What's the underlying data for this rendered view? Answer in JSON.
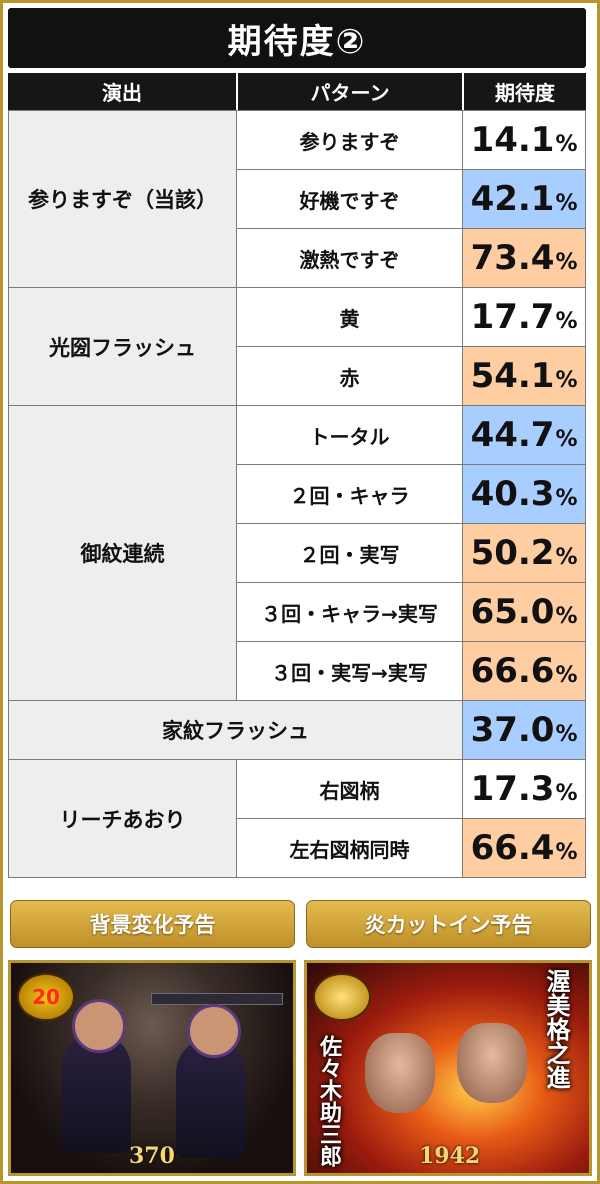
{
  "title": "期待度②",
  "headers": {
    "col1": "演出",
    "col2": "パターン",
    "col3": "期待度"
  },
  "pct_symbol": "%",
  "groups": [
    {
      "name": "参りますぞ（当該）",
      "rows": [
        {
          "pattern": "参りますぞ",
          "value": "14.1",
          "color": "white"
        },
        {
          "pattern": "好機ですぞ",
          "value": "42.1",
          "color": "blue"
        },
        {
          "pattern": "激熱ですぞ",
          "value": "73.4",
          "color": "orange"
        }
      ]
    },
    {
      "name": "光圀フラッシュ",
      "rows": [
        {
          "pattern": "黄",
          "value": "17.7",
          "color": "white"
        },
        {
          "pattern": "赤",
          "value": "54.1",
          "color": "orange"
        }
      ]
    },
    {
      "name": "御紋連続",
      "rows": [
        {
          "pattern": "トータル",
          "value": "44.7",
          "color": "blue"
        },
        {
          "pattern": "２回・キャラ",
          "value": "40.3",
          "color": "blue"
        },
        {
          "pattern": "２回・実写",
          "value": "50.2",
          "color": "orange"
        },
        {
          "pattern": "３回・キャラ→実写",
          "value": "65.0",
          "color": "orange"
        },
        {
          "pattern": "３回・実写→実写",
          "value": "66.6",
          "color": "orange"
        }
      ]
    },
    {
      "name": "家紋フラッシュ",
      "rows": [
        {
          "pattern": "",
          "value": "37.0",
          "color": "blue"
        }
      ]
    },
    {
      "name": "リーチあおり",
      "rows": [
        {
          "pattern": "右図柄",
          "value": "17.3",
          "color": "white"
        },
        {
          "pattern": "左右図柄同時",
          "value": "66.4",
          "color": "orange"
        }
      ]
    }
  ],
  "banners": {
    "left": "背景変化予告",
    "right": "炎カットイン予告"
  },
  "screens": {
    "left": {
      "badge": "20",
      "counter": "370"
    },
    "right": {
      "name_left": "佐々木助三郎",
      "name_right": "渥美格之進",
      "counter": "1942"
    }
  },
  "colors": {
    "blue": "#a8ceff",
    "orange": "#ffcda2",
    "white": "#ffffff",
    "gold": "#b8962e"
  }
}
